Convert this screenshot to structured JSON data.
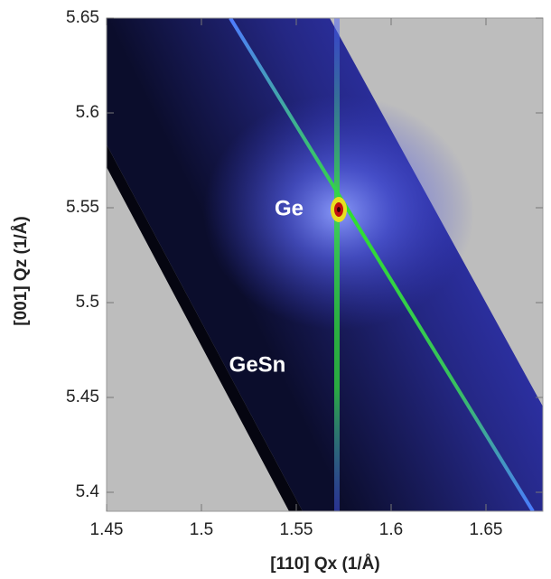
{
  "chart_data": {
    "type": "heatmap",
    "x_label": "[110] Qx (1/Å)",
    "y_label": "[001] Qz (1/Å)",
    "xlim": [
      1.45,
      1.68
    ],
    "ylim": [
      5.39,
      5.65
    ],
    "xticks": [
      1.45,
      1.5,
      1.55,
      1.6,
      1.65
    ],
    "yticks": [
      5.4,
      5.45,
      5.5,
      5.55,
      5.6,
      5.65
    ],
    "annotations": [
      "Ge",
      "GeSn"
    ]
  }
}
